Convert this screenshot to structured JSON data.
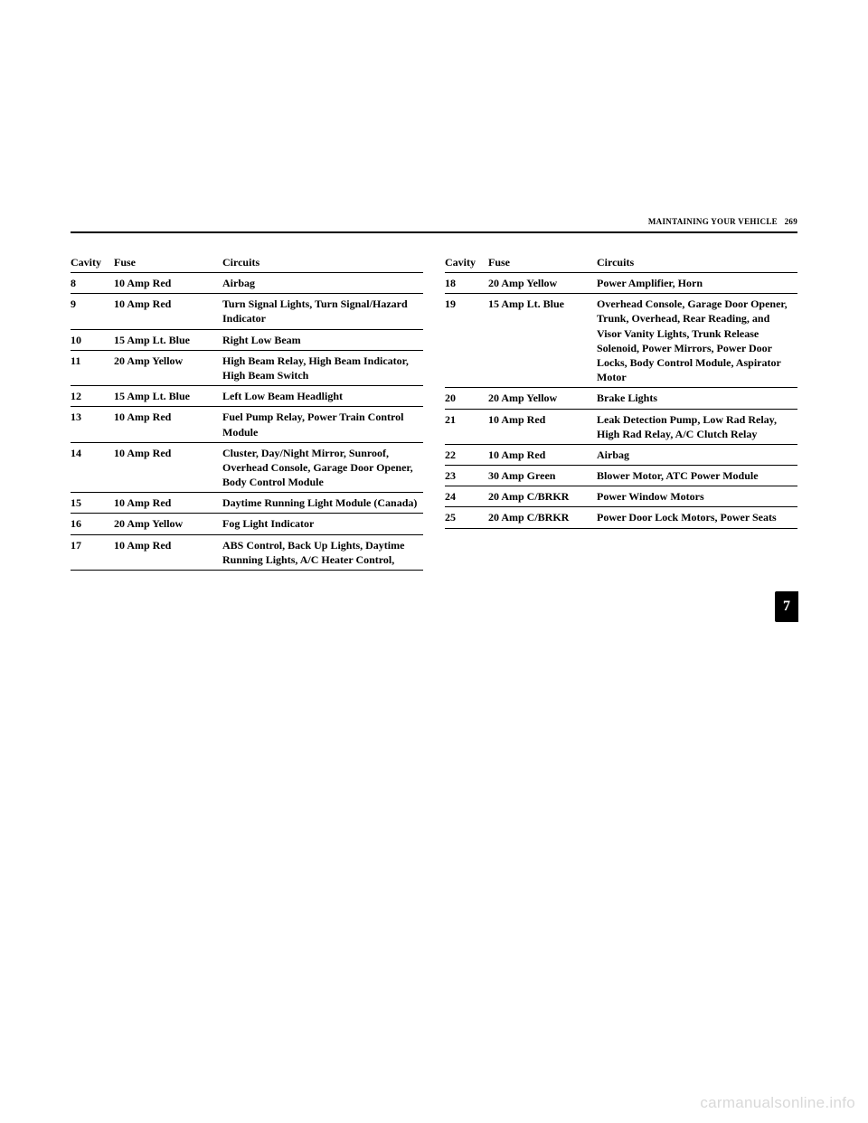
{
  "header": {
    "section": "MAINTAINING YOUR VEHICLE",
    "page": "269"
  },
  "tab": "7",
  "watermark": "carmanualsonline.info",
  "left": {
    "headers": [
      "Cavity",
      "Fuse",
      "Circuits"
    ],
    "rows": [
      [
        "8",
        "10 Amp Red",
        "Airbag"
      ],
      [
        "9",
        "10 Amp Red",
        "Turn Signal Lights, Turn Signal/Hazard Indicator"
      ],
      [
        "10",
        "15 Amp Lt. Blue",
        "Right Low Beam"
      ],
      [
        "11",
        "20 Amp Yellow",
        "High Beam Relay, High Beam Indicator, High Beam Switch"
      ],
      [
        "12",
        "15 Amp Lt. Blue",
        "Left Low Beam Headlight"
      ],
      [
        "13",
        "10 Amp Red",
        "Fuel Pump Relay, Power Train Control Module"
      ],
      [
        "14",
        "10 Amp Red",
        "Cluster, Day/Night Mirror, Sunroof, Overhead Console, Garage Door Opener, Body Control Module"
      ],
      [
        "15",
        "10 Amp Red",
        "Daytime Running Light Module (Canada)"
      ],
      [
        "16",
        "20 Amp Yellow",
        "Fog Light Indicator"
      ],
      [
        "17",
        "10 Amp Red",
        "ABS Control, Back Up Lights, Daytime Running Lights, A/C Heater Control,"
      ]
    ]
  },
  "right": {
    "headers": [
      "Cavity",
      "Fuse",
      "Circuits"
    ],
    "rows": [
      [
        "18",
        "20 Amp Yellow",
        "Power Amplifier, Horn"
      ],
      [
        "19",
        "15 Amp Lt. Blue",
        "Overhead Console, Garage Door Opener, Trunk, Overhead, Rear Reading, and Visor Vanity Lights, Trunk Release Solenoid, Power Mirrors, Power Door Locks, Body Control Module, Aspirator Motor"
      ],
      [
        "20",
        "20 Amp Yellow",
        "Brake Lights"
      ],
      [
        "21",
        "10 Amp Red",
        "Leak Detection Pump, Low Rad Relay, High Rad Relay, A/C Clutch Relay"
      ],
      [
        "22",
        "10 Amp Red",
        "Airbag"
      ],
      [
        "23",
        "30 Amp Green",
        "Blower Motor, ATC Power Module"
      ],
      [
        "24",
        "20 Amp C/BRKR",
        "Power Window Motors"
      ],
      [
        "25",
        "20 Amp C/BRKR",
        "Power Door Lock Motors, Power Seats"
      ]
    ]
  }
}
